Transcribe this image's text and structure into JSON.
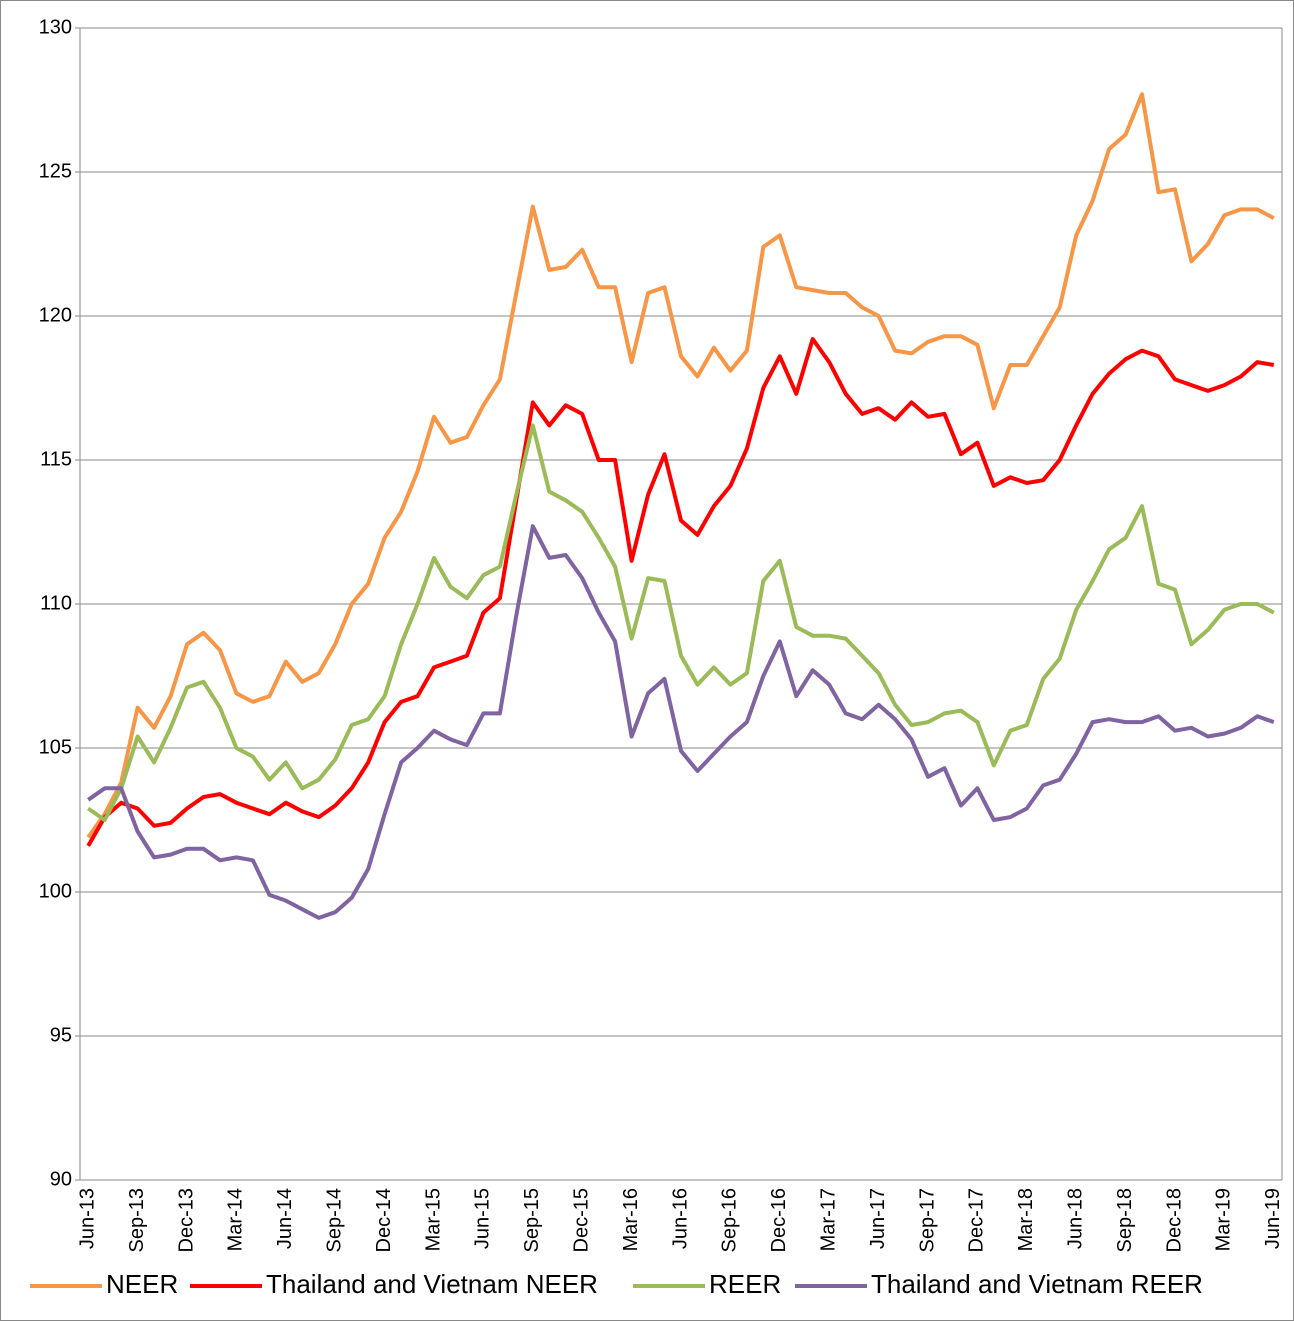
{
  "chart_data": {
    "type": "line",
    "categories": [
      "Jun-13",
      null,
      null,
      "Sep-13",
      null,
      null,
      "Dec-13",
      null,
      null,
      "Mar-14",
      null,
      null,
      "Jun-14",
      null,
      null,
      "Sep-14",
      null,
      null,
      "Dec-14",
      null,
      null,
      "Mar-15",
      null,
      null,
      "Jun-15",
      null,
      null,
      "Sep-15",
      null,
      null,
      "Dec-15",
      null,
      null,
      "Mar-16",
      null,
      null,
      "Jun-16",
      null,
      null,
      "Sep-16",
      null,
      null,
      "Dec-16",
      null,
      null,
      "Mar-17",
      null,
      null,
      "Jun-17",
      null,
      null,
      "Sep-17",
      null,
      null,
      "Dec-17",
      null,
      null,
      "Mar-18",
      null,
      null,
      "Jun-18",
      null,
      null,
      "Sep-18",
      null,
      null,
      "Dec-18",
      null,
      null,
      "Mar-19",
      null,
      null,
      "Jun-19"
    ],
    "series": [
      {
        "name": "NEER",
        "color": "#f79646",
        "values": [
          101.9,
          102.7,
          103.8,
          106.4,
          105.7,
          106.8,
          108.6,
          109.0,
          108.4,
          106.9,
          106.6,
          106.8,
          108.0,
          107.3,
          107.6,
          108.6,
          110.0,
          110.7,
          112.3,
          113.2,
          114.6,
          116.5,
          115.6,
          115.8,
          116.9,
          117.8,
          120.8,
          123.8,
          121.6,
          121.7,
          122.3,
          121.0,
          121.0,
          118.4,
          120.8,
          121.0,
          118.6,
          117.9,
          118.9,
          118.1,
          118.8,
          122.4,
          122.8,
          121.0,
          120.9,
          120.8,
          120.8,
          120.3,
          120.0,
          118.8,
          118.7,
          119.1,
          119.3,
          119.3,
          119.0,
          116.8,
          118.3,
          118.3,
          119.3,
          120.3,
          122.8,
          124.0,
          125.8,
          126.3,
          127.7,
          124.3,
          124.4,
          121.9,
          122.5,
          123.5,
          123.7,
          123.7,
          123.4
        ]
      },
      {
        "name": "Thailand and Vietnam NEER",
        "color": "#ff0000",
        "values": [
          101.6,
          102.6,
          103.1,
          102.9,
          102.3,
          102.4,
          102.9,
          103.3,
          103.4,
          103.1,
          102.9,
          102.7,
          103.1,
          102.8,
          102.6,
          103.0,
          103.6,
          104.5,
          105.9,
          106.6,
          106.8,
          107.8,
          108.0,
          108.2,
          109.7,
          110.2,
          113.6,
          117.0,
          116.2,
          116.9,
          116.6,
          115.0,
          115.0,
          111.5,
          113.8,
          115.2,
          112.9,
          112.4,
          113.4,
          114.1,
          115.4,
          117.5,
          118.6,
          117.3,
          119.2,
          118.4,
          117.3,
          116.6,
          116.8,
          116.4,
          117.0,
          116.5,
          116.6,
          115.2,
          115.6,
          114.1,
          114.4,
          114.2,
          114.3,
          115.0,
          116.2,
          117.3,
          118.0,
          118.5,
          118.8,
          118.6,
          117.8,
          117.6,
          117.4,
          117.6,
          117.9,
          118.4,
          118.3
        ]
      },
      {
        "name": "REER",
        "color": "#9bbb59",
        "values": [
          102.9,
          102.5,
          103.6,
          105.4,
          104.5,
          105.7,
          107.1,
          107.3,
          106.4,
          105.0,
          104.7,
          103.9,
          104.5,
          103.6,
          103.9,
          104.6,
          105.8,
          106.0,
          106.8,
          108.6,
          110.0,
          111.6,
          110.6,
          110.2,
          111.0,
          111.3,
          113.8,
          116.2,
          113.9,
          113.6,
          113.2,
          112.3,
          111.3,
          108.8,
          110.9,
          110.8,
          108.2,
          107.2,
          107.8,
          107.2,
          107.6,
          110.8,
          111.5,
          109.2,
          108.9,
          108.9,
          108.8,
          108.2,
          107.6,
          106.5,
          105.8,
          105.9,
          106.2,
          106.3,
          105.9,
          104.4,
          105.6,
          105.8,
          107.4,
          108.1,
          109.8,
          110.8,
          111.9,
          112.3,
          113.4,
          110.7,
          110.5,
          108.6,
          109.1,
          109.8,
          110.0,
          110.0,
          109.7
        ]
      },
      {
        "name": "Thailand and Vietnam REER",
        "color": "#8064a2",
        "values": [
          103.2,
          103.6,
          103.6,
          102.1,
          101.2,
          101.3,
          101.5,
          101.5,
          101.1,
          101.2,
          101.1,
          99.9,
          99.7,
          99.4,
          99.1,
          99.3,
          99.8,
          100.8,
          102.7,
          104.5,
          105.0,
          105.6,
          105.3,
          105.1,
          106.2,
          106.2,
          109.6,
          112.7,
          111.6,
          111.7,
          110.9,
          109.7,
          108.7,
          105.4,
          106.9,
          107.4,
          104.9,
          104.2,
          104.8,
          105.4,
          105.9,
          107.5,
          108.7,
          106.8,
          107.7,
          107.2,
          106.2,
          106.0,
          106.5,
          106.0,
          105.3,
          104.0,
          104.3,
          103.0,
          103.6,
          102.5,
          102.6,
          102.9,
          103.7,
          103.9,
          104.8,
          105.9,
          106.0,
          105.9,
          105.9,
          106.1,
          105.6,
          105.7,
          105.4,
          105.5,
          105.7,
          106.1,
          105.9
        ]
      }
    ],
    "ylim": [
      90,
      130
    ],
    "yticks": [
      90,
      95,
      100,
      105,
      110,
      115,
      120,
      125,
      130
    ],
    "grid": true,
    "legend": "bottom"
  }
}
